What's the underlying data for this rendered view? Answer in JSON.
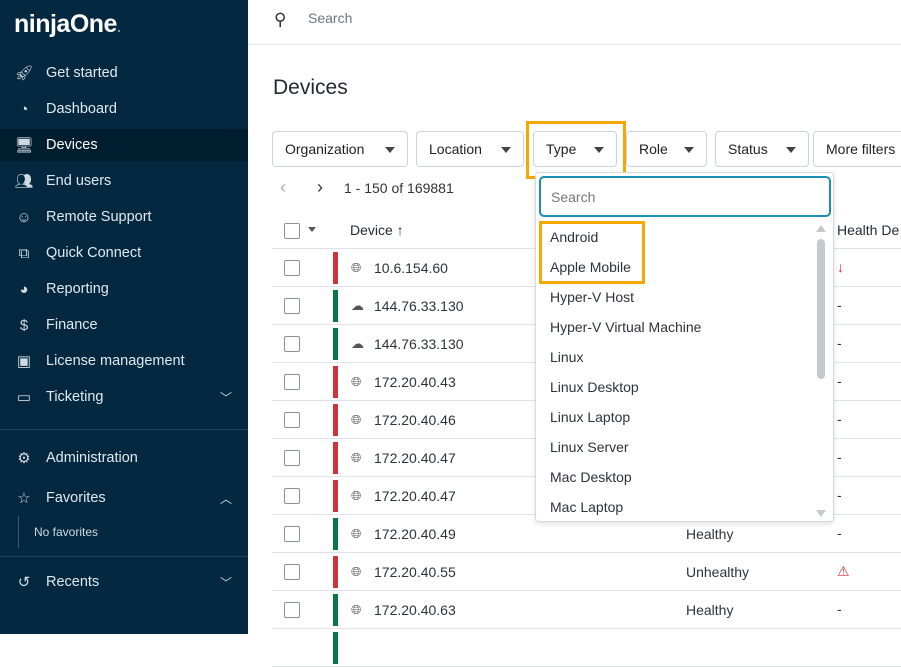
{
  "brand": {
    "name": "ninjaOne",
    "dot": "."
  },
  "sidebar": {
    "items": [
      {
        "label": "Get started",
        "icon": "rocket-icon",
        "glyph": "🚀︎"
      },
      {
        "label": "Dashboard",
        "icon": "gauge-icon",
        "glyph": "◔"
      },
      {
        "label": "Devices",
        "icon": "devices-icon",
        "glyph": "🖥︎"
      },
      {
        "label": "End users",
        "icon": "users-icon",
        "glyph": "👥︎"
      },
      {
        "label": "Remote Support",
        "icon": "headset-icon",
        "glyph": "☺"
      },
      {
        "label": "Quick Connect",
        "icon": "screens-icon",
        "glyph": "⧉"
      },
      {
        "label": "Reporting",
        "icon": "pie-chart-icon",
        "glyph": "◕"
      },
      {
        "label": "Finance",
        "icon": "dollar-icon",
        "glyph": "$"
      },
      {
        "label": "License management",
        "icon": "box-icon",
        "glyph": "▣"
      },
      {
        "label": "Ticketing",
        "icon": "ticket-icon",
        "glyph": "▭"
      }
    ],
    "administration": "Administration",
    "favorites": "Favorites",
    "no_favorites": "No favorites",
    "recents": "Recents"
  },
  "topbar": {
    "search_placeholder": "Search"
  },
  "page": {
    "title": "Devices"
  },
  "filters": [
    "Organization",
    "Location",
    "Type",
    "Role",
    "Status",
    "More filters"
  ],
  "pager": {
    "range": "1 - 150 of 169881"
  },
  "table": {
    "columns": {
      "device": "Device ↑",
      "health_detail": "Health De"
    },
    "rows": [
      {
        "status": "red",
        "icon": "globe",
        "name": "10.6.154.60",
        "health": "",
        "detail": "↓"
      },
      {
        "status": "green",
        "icon": "cloud",
        "name": "144.76.33.130",
        "health": "",
        "detail": "-"
      },
      {
        "status": "green",
        "icon": "cloud",
        "name": "144.76.33.130",
        "health": "",
        "detail": "-"
      },
      {
        "status": "red",
        "icon": "globe",
        "name": "172.20.40.43",
        "health": "",
        "detail": "-"
      },
      {
        "status": "red",
        "icon": "globe",
        "name": "172.20.40.46",
        "health": "",
        "detail": "-"
      },
      {
        "status": "red",
        "icon": "globe",
        "name": "172.20.40.47",
        "health": "",
        "detail": "-"
      },
      {
        "status": "red",
        "icon": "globe",
        "name": "172.20.40.47",
        "health": "",
        "detail": "-"
      },
      {
        "status": "green",
        "icon": "globe",
        "name": "172.20.40.49",
        "health": "Healthy",
        "detail": "-"
      },
      {
        "status": "red",
        "icon": "globe",
        "name": "172.20.40.55",
        "health": "Unhealthy",
        "detail": "⚠"
      },
      {
        "status": "green",
        "icon": "globe",
        "name": "172.20.40.63",
        "health": "Healthy",
        "detail": "-"
      }
    ]
  },
  "type_dropdown": {
    "search_placeholder": "Search",
    "options": [
      "Android",
      "Apple Mobile",
      "Hyper-V Host",
      "Hyper-V Virtual Machine",
      "Linux",
      "Linux Desktop",
      "Linux Laptop",
      "Linux Server",
      "Mac Desktop",
      "Mac Laptop"
    ]
  },
  "colors": {
    "sidebar": "#03283f",
    "red": "#d0313c",
    "green": "#047a44",
    "highlight": "#f6a800",
    "focus": "#1a8fb0"
  }
}
